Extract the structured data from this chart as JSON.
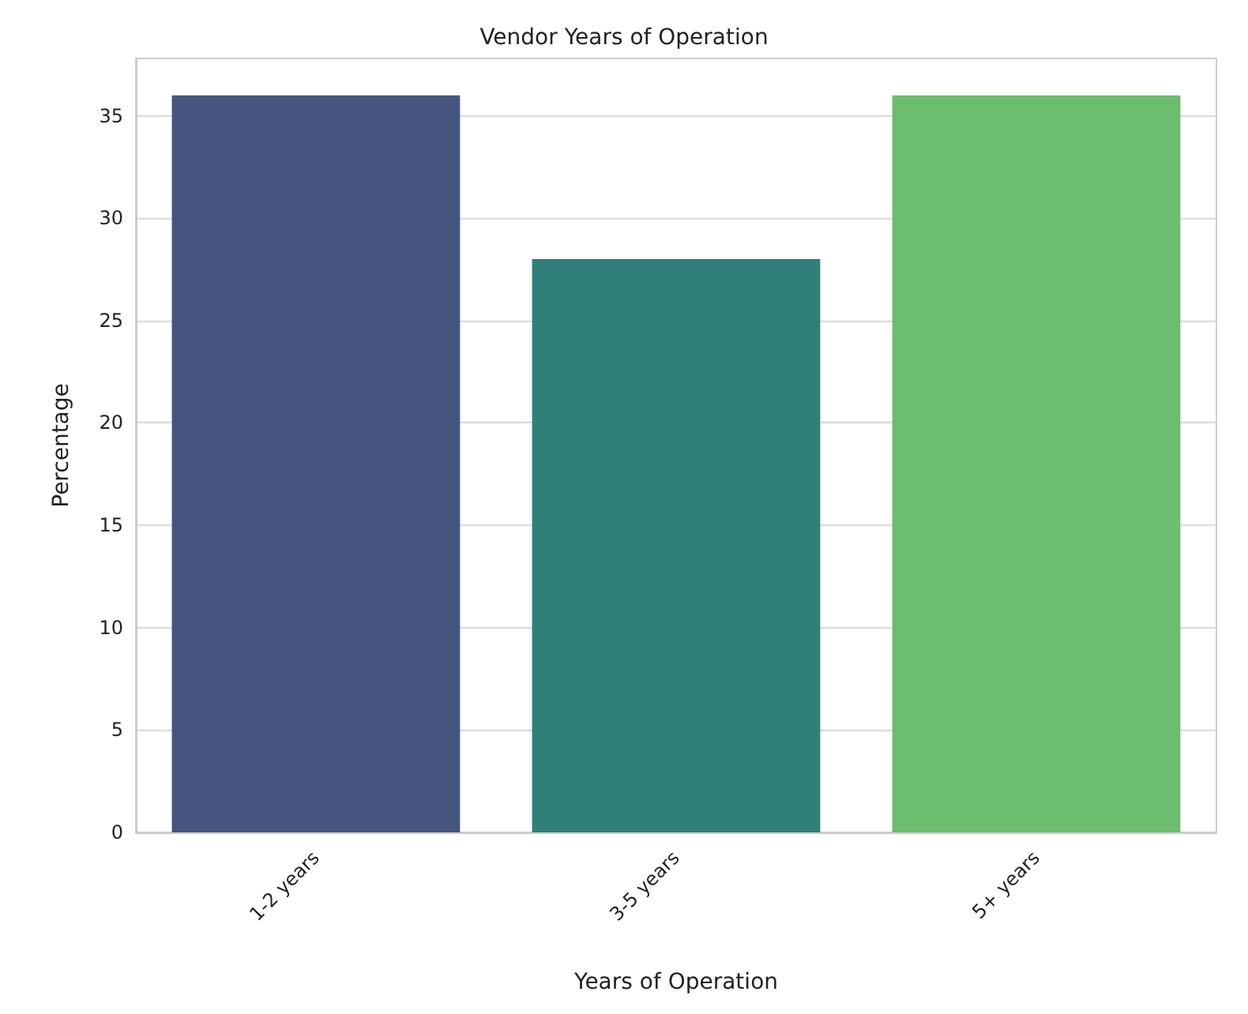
{
  "chart_data": {
    "type": "bar",
    "title": "Vendor Years of Operation",
    "xlabel": "Years of Operation",
    "ylabel": "Percentage",
    "categories": [
      "1-2 years",
      "3-5 years",
      "5+ years"
    ],
    "values": [
      36,
      28,
      36
    ],
    "colors": [
      "#46557f",
      "#2e8079",
      "#6dbd6e"
    ],
    "ylim": [
      0,
      37.8
    ],
    "yticks": [
      0,
      5,
      10,
      15,
      20,
      25,
      30,
      35
    ],
    "grid": "y"
  }
}
